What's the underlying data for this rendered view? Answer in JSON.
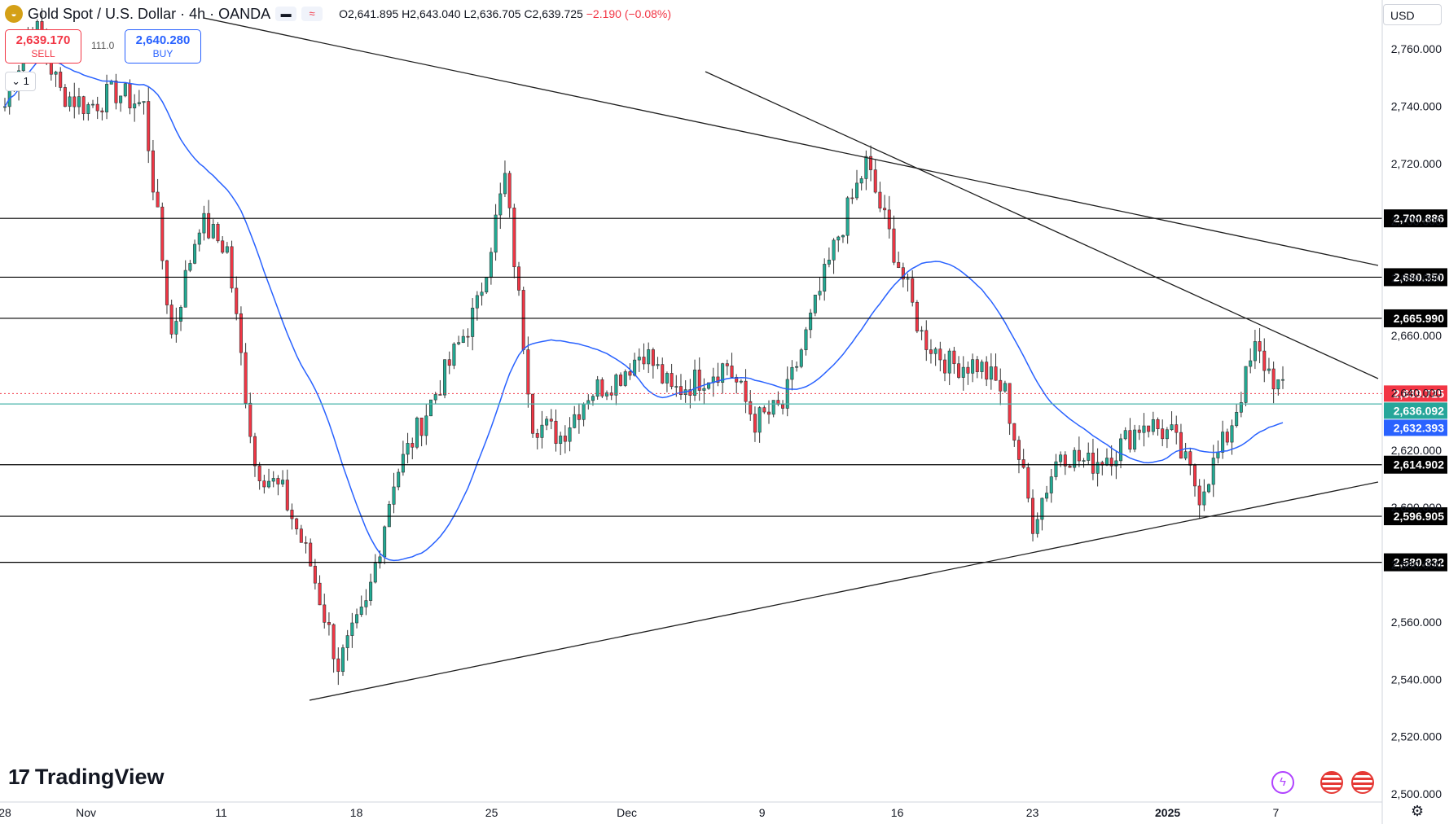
{
  "header": {
    "symbol": "Gold Spot / U.S. Dollar · 4h · OANDA",
    "symbol_icon": "gold-coin-icon",
    "open": "O2,641.895",
    "high": "H2,643.040",
    "low": "L2,636.705",
    "close": "C2,639.725",
    "change": "−2.190 (−0.08%)"
  },
  "trade": {
    "sell_price": "2,639.170",
    "sell_label": "SELL",
    "buy_price": "2,640.280",
    "buy_label": "BUY",
    "spread": "111.0",
    "quantity": "1"
  },
  "currency": "USD",
  "brand": "TradingView",
  "colors": {
    "up": "#22ab94",
    "down": "#f23645",
    "ma": "#2962ff",
    "level": "#000000",
    "current_price": "#f23645",
    "teal_line": "#4db6ac"
  },
  "chart_data": {
    "type": "candlestick",
    "title": "Gold Spot / U.S. Dollar · 4h · OANDA",
    "ylim": [
      2500,
      2770
    ],
    "y_ticks": [
      2500,
      2520,
      2540,
      2560,
      2580,
      2600,
      2620,
      2640,
      2660,
      2680,
      2700,
      2720,
      2740,
      2760
    ],
    "x_ticks": [
      "28",
      "Nov",
      "11",
      "18",
      "25",
      "Dec",
      "9",
      "16",
      "23",
      "2025",
      "7"
    ],
    "price_lines": [
      {
        "value": "2,700.886"
      },
      {
        "value": "2,680.350"
      },
      {
        "value": "2,665.990"
      },
      {
        "value": "2,614.902"
      },
      {
        "value": "2,596.905"
      },
      {
        "value": "2,580.832"
      }
    ],
    "current_price": "2,639.725",
    "ma_value": "2,632.393",
    "teal_level": "2,636.092",
    "close_path": [
      [
        "Oct 28",
        2740
      ],
      [
        "Oct 30",
        2770
      ],
      [
        "Oct 31",
        2745
      ],
      [
        "Nov 1",
        2740
      ],
      [
        "Nov 4",
        2745
      ],
      [
        "Nov 5",
        2740
      ],
      [
        "Nov 6",
        2660
      ],
      [
        "Nov 7",
        2700
      ],
      [
        "Nov 8",
        2690
      ],
      [
        "Nov 11",
        2615
      ],
      [
        "Nov 12",
        2605
      ],
      [
        "Nov 13",
        2580
      ],
      [
        "Nov 14",
        2545
      ],
      [
        "Nov 15",
        2565
      ],
      [
        "Nov 18",
        2610
      ],
      [
        "Nov 19",
        2630
      ],
      [
        "Nov 20",
        2650
      ],
      [
        "Nov 21",
        2670
      ],
      [
        "Nov 22",
        2715
      ],
      [
        "Nov 25",
        2630
      ],
      [
        "Nov 26",
        2625
      ],
      [
        "Nov 27",
        2640
      ],
      [
        "Nov 28",
        2645
      ],
      [
        "Nov 29",
        2655
      ],
      [
        "Dec 2",
        2640
      ],
      [
        "Dec 3",
        2645
      ],
      [
        "Dec 4",
        2650
      ],
      [
        "Dec 5",
        2630
      ],
      [
        "Dec 6",
        2635
      ],
      [
        "Dec 9",
        2665
      ],
      [
        "Dec 10",
        2695
      ],
      [
        "Dec 11",
        2720
      ],
      [
        "Dec 12",
        2690
      ],
      [
        "Dec 13",
        2660
      ],
      [
        "Dec 16",
        2650
      ],
      [
        "Dec 17",
        2650
      ],
      [
        "Dec 18",
        2640
      ],
      [
        "Dec 19",
        2595
      ],
      [
        "Dec 20",
        2620
      ],
      [
        "Dec 23",
        2615
      ],
      [
        "Dec 24",
        2620
      ],
      [
        "Dec 26",
        2630
      ],
      [
        "Dec 27",
        2625
      ],
      [
        "Dec 30",
        2605
      ],
      [
        "Dec 31",
        2625
      ],
      [
        "Jan 2",
        2655
      ],
      [
        "Jan 3",
        2640
      ]
    ]
  }
}
